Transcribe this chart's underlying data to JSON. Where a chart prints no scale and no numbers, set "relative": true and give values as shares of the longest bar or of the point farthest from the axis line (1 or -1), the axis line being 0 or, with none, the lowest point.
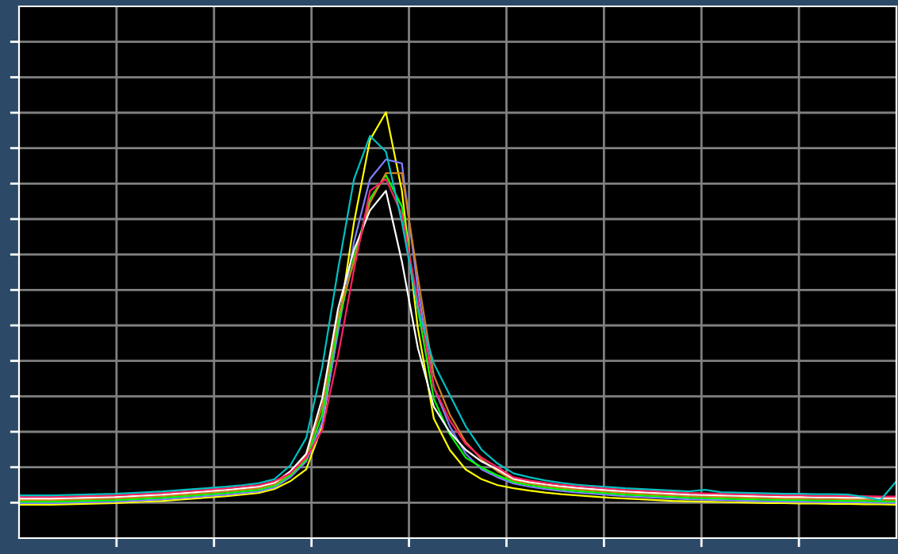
{
  "chart_data": {
    "type": "line",
    "relative": true,
    "grid": true,
    "categories": [
      null,
      null,
      null,
      null,
      null,
      null,
      null,
      null,
      null,
      null,
      null,
      null,
      null,
      null,
      null,
      null,
      null,
      null,
      null,
      null,
      null,
      null,
      null,
      null,
      null,
      null,
      null,
      null,
      null,
      null,
      null,
      null,
      null,
      null,
      null,
      null,
      null,
      null,
      null,
      null,
      null,
      null,
      null,
      null,
      null,
      null,
      null,
      null,
      null,
      null,
      null,
      null,
      null,
      null,
      null,
      null
    ],
    "series": [
      {
        "color": "#ffff00",
        "values": [
          0,
          0,
          0,
          0.001,
          0.002,
          0.003,
          0.004,
          0.006,
          0.008,
          0.01,
          0.013,
          0.016,
          0.019,
          0.022,
          0.026,
          0.03,
          0.04,
          0.06,
          0.09,
          0.2,
          0.45,
          0.72,
          0.93,
          1.0,
          0.8,
          0.45,
          0.22,
          0.14,
          0.09,
          0.065,
          0.05,
          0.042,
          0.036,
          0.031,
          0.027,
          0.024,
          0.021,
          0.018,
          0.016,
          0.014,
          0.012,
          0.01,
          0.009,
          0.008,
          0.007,
          0.006,
          0.005,
          0.004,
          0.004,
          0.003,
          0.003,
          0.002,
          0.002,
          0.001,
          0.001,
          0.0
        ]
      },
      {
        "color": "#8080ff",
        "values": [
          0.004,
          0.004,
          0.004,
          0.005,
          0.006,
          0.007,
          0.008,
          0.01,
          0.012,
          0.014,
          0.017,
          0.02,
          0.023,
          0.026,
          0.03,
          0.034,
          0.044,
          0.07,
          0.11,
          0.21,
          0.44,
          0.67,
          0.83,
          0.88,
          0.87,
          0.55,
          0.3,
          0.2,
          0.13,
          0.09,
          0.07,
          0.054,
          0.046,
          0.04,
          0.035,
          0.031,
          0.028,
          0.025,
          0.022,
          0.02,
          0.018,
          0.016,
          0.014,
          0.013,
          0.012,
          0.011,
          0.01,
          0.009,
          0.008,
          0.008,
          0.007,
          0.007,
          0.006,
          0.006,
          0.005,
          0.005
        ]
      },
      {
        "color": "#00ff00",
        "values": [
          0.008,
          0.008,
          0.008,
          0.009,
          0.01,
          0.011,
          0.012,
          0.014,
          0.016,
          0.018,
          0.021,
          0.024,
          0.027,
          0.03,
          0.034,
          0.038,
          0.048,
          0.075,
          0.115,
          0.23,
          0.46,
          0.63,
          0.78,
          0.84,
          0.76,
          0.5,
          0.27,
          0.18,
          0.12,
          0.095,
          0.075,
          0.058,
          0.05,
          0.044,
          0.039,
          0.035,
          0.032,
          0.029,
          0.026,
          0.024,
          0.022,
          0.02,
          0.018,
          0.017,
          0.016,
          0.015,
          0.014,
          0.013,
          0.012,
          0.012,
          0.011,
          0.011,
          0.01,
          0.01,
          0.009,
          0.009
        ]
      },
      {
        "color": "#d08020",
        "values": [
          0.012,
          0.012,
          0.012,
          0.013,
          0.014,
          0.015,
          0.016,
          0.018,
          0.02,
          0.022,
          0.025,
          0.028,
          0.031,
          0.034,
          0.038,
          0.042,
          0.052,
          0.08,
          0.125,
          0.25,
          0.48,
          0.62,
          0.77,
          0.845,
          0.845,
          0.58,
          0.33,
          0.23,
          0.16,
          0.115,
          0.085,
          0.062,
          0.054,
          0.048,
          0.043,
          0.039,
          0.036,
          0.033,
          0.03,
          0.028,
          0.026,
          0.024,
          0.022,
          0.021,
          0.02,
          0.019,
          0.018,
          0.017,
          0.016,
          0.016,
          0.015,
          0.015,
          0.014,
          0.014,
          0.013,
          0.013
        ]
      },
      {
        "color": "#ffffff",
        "values": [
          0.016,
          0.016,
          0.016,
          0.017,
          0.018,
          0.019,
          0.02,
          0.022,
          0.024,
          0.026,
          0.029,
          0.032,
          0.035,
          0.038,
          0.042,
          0.046,
          0.056,
          0.085,
          0.13,
          0.27,
          0.5,
          0.65,
          0.75,
          0.8,
          0.62,
          0.4,
          0.25,
          0.185,
          0.14,
          0.11,
          0.09,
          0.066,
          0.058,
          0.052,
          0.047,
          0.043,
          0.04,
          0.037,
          0.034,
          0.032,
          0.03,
          0.028,
          0.026,
          0.025,
          0.024,
          0.023,
          0.022,
          0.021,
          0.02,
          0.02,
          0.019,
          0.019,
          0.018,
          0.018,
          0.017,
          0.017
        ]
      },
      {
        "color": "#ff2060",
        "values": [
          0.02,
          0.02,
          0.02,
          0.021,
          0.022,
          0.023,
          0.024,
          0.026,
          0.028,
          0.03,
          0.033,
          0.036,
          0.039,
          0.042,
          0.046,
          0.05,
          0.06,
          0.08,
          0.12,
          0.19,
          0.38,
          0.6,
          0.8,
          0.83,
          0.74,
          0.52,
          0.3,
          0.215,
          0.155,
          0.12,
          0.095,
          0.07,
          0.062,
          0.056,
          0.051,
          0.047,
          0.044,
          0.041,
          0.038,
          0.036,
          0.034,
          0.032,
          0.03,
          0.029,
          0.028,
          0.027,
          0.026,
          0.025,
          0.024,
          0.024,
          0.023,
          0.023,
          0.022,
          0.022,
          0.021,
          0.021
        ]
      },
      {
        "color": "#00c0c0",
        "values": [
          0.024,
          0.024,
          0.024,
          0.025,
          0.026,
          0.027,
          0.028,
          0.03,
          0.032,
          0.034,
          0.037,
          0.04,
          0.043,
          0.046,
          0.05,
          0.055,
          0.065,
          0.1,
          0.17,
          0.35,
          0.6,
          0.83,
          0.94,
          0.9,
          0.72,
          0.5,
          0.36,
          0.28,
          0.2,
          0.14,
          0.105,
          0.08,
          0.07,
          0.062,
          0.056,
          0.051,
          0.048,
          0.045,
          0.042,
          0.04,
          0.038,
          0.036,
          0.034,
          0.038,
          0.032,
          0.031,
          0.03,
          0.029,
          0.028,
          0.028,
          0.027,
          0.027,
          0.026,
          0.02,
          0.012,
          0.06
        ]
      }
    ]
  }
}
